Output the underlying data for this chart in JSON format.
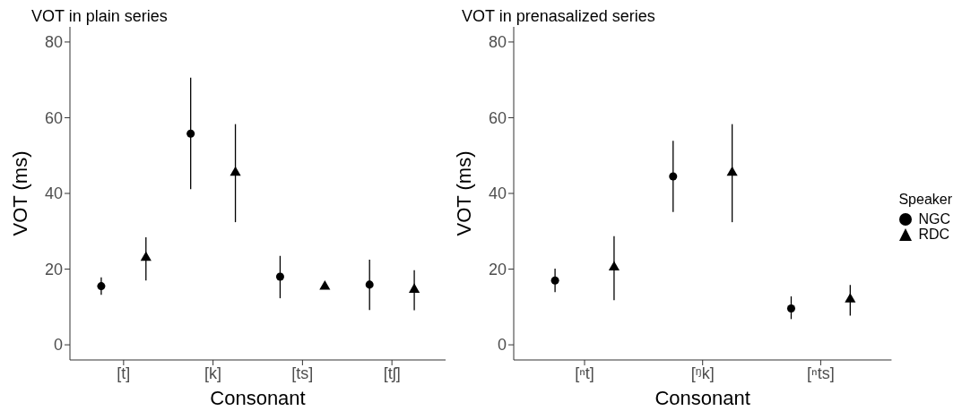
{
  "chart_data": [
    {
      "type": "scatter",
      "title": "VOT in plain series",
      "xlabel": "Consonant",
      "ylabel": "VOT (ms)",
      "categories": [
        "[t]",
        "[k]",
        "[ts]",
        "[tʃ]"
      ],
      "ylim": [
        -4,
        84
      ],
      "yticks": [
        0,
        20,
        40,
        60,
        80
      ],
      "series": [
        {
          "color": "#000000",
          "marker": "circle",
          "values": [
            15.5,
            55.8,
            18.0,
            15.9
          ],
          "errors": [
            [
              13.2,
              17.8
            ],
            [
              41.1,
              70.6
            ],
            [
              12.3,
              23.5
            ],
            [
              9.2,
              22.5
            ]
          ]
        },
        {
          "color": "#000000",
          "marker": "triangle",
          "values": [
            23.0,
            45.5,
            15.4,
            14.6
          ],
          "errors": [
            [
              17.0,
              28.4
            ],
            [
              32.4,
              58.3
            ],
            [
              14.8,
              16.0
            ],
            [
              9.1,
              19.7
            ]
          ]
        }
      ]
    },
    {
      "type": "scatter",
      "title": "VOT in prenasalized series",
      "xlabel": "Consonant",
      "ylabel": "VOT (ms)",
      "categories": [
        "[ⁿt]",
        "[ᵑk]",
        "[ⁿts]"
      ],
      "ylim": [
        -4,
        84
      ],
      "yticks": [
        0,
        20,
        40,
        60,
        80
      ],
      "legend": "right",
      "legend_title": "Speaker",
      "series": [
        {
          "name": "NGC",
          "color": "#000000",
          "marker": "circle",
          "values": [
            17.0,
            44.5,
            9.6
          ],
          "errors": [
            [
              13.9,
              20.1
            ],
            [
              35.1,
              53.9
            ],
            [
              6.8,
              12.8
            ]
          ]
        },
        {
          "name": "RDC",
          "color": "#000000",
          "marker": "triangle",
          "values": [
            20.5,
            45.5,
            12.0
          ],
          "errors": [
            [
              11.8,
              28.7
            ],
            [
              32.4,
              58.3
            ],
            [
              7.7,
              15.8
            ]
          ]
        }
      ]
    }
  ]
}
